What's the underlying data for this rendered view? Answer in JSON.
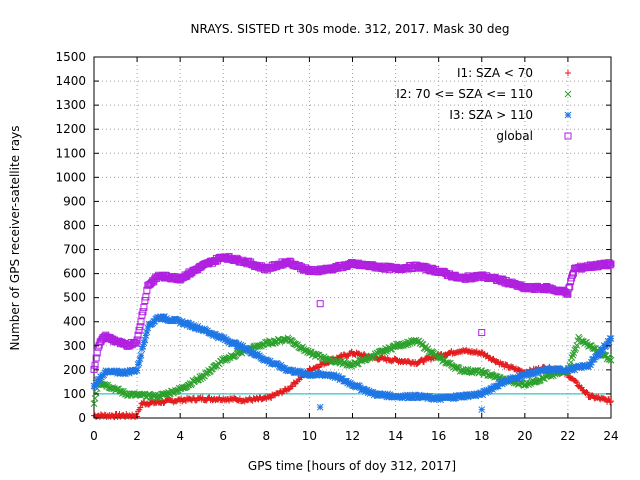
{
  "chart_data": {
    "type": "scatter",
    "title": "NRAYS. SISTED rt 30s mode. 312, 2017. Mask 30 deg",
    "xlabel": "GPS time [hours of doy 312, 2017]",
    "ylabel": "Number of GPS receiver-satellite rays",
    "xlim": [
      0,
      24
    ],
    "ylim": [
      0,
      1500
    ],
    "xticks": [
      0,
      2,
      4,
      6,
      8,
      10,
      12,
      14,
      16,
      18,
      20,
      22,
      24
    ],
    "yticks": [
      0,
      100,
      200,
      300,
      400,
      500,
      600,
      700,
      800,
      900,
      1000,
      1100,
      1200,
      1300,
      1400,
      1500
    ],
    "grid": true,
    "legend_position": "top-right",
    "reference_line": {
      "y": 100,
      "color": "#00c0c0"
    },
    "series": [
      {
        "name": "I1: SZA < 70",
        "marker": "+",
        "color": "#e41a1c",
        "x": [
          0,
          0.5,
          1,
          1.5,
          2,
          2.2,
          3,
          4,
          5,
          6,
          7,
          8,
          9,
          10,
          11,
          12,
          13,
          14,
          15,
          16,
          17,
          18,
          19,
          20,
          21,
          22,
          23,
          24
        ],
        "y": [
          10,
          10,
          10,
          10,
          10,
          60,
          65,
          75,
          80,
          80,
          75,
          80,
          120,
          200,
          240,
          270,
          250,
          240,
          230,
          260,
          280,
          270,
          220,
          190,
          210,
          180,
          90,
          70
        ]
      },
      {
        "name": "I2: 70 <= SZA <= 110",
        "marker": "x",
        "color": "#2ca02c",
        "x": [
          0,
          0.2,
          0.5,
          1,
          1.5,
          2,
          3,
          4,
          5,
          6,
          7,
          8,
          9,
          10,
          11,
          12,
          13,
          14,
          15,
          16,
          17,
          18,
          19,
          20,
          21,
          22,
          22.5,
          23,
          24
        ],
        "y": [
          60,
          150,
          140,
          120,
          100,
          95,
          90,
          120,
          170,
          240,
          280,
          310,
          330,
          270,
          240,
          220,
          260,
          300,
          320,
          250,
          200,
          190,
          160,
          140,
          170,
          200,
          330,
          300,
          240
        ]
      },
      {
        "name": "I3: SZA > 110",
        "marker": "*",
        "color": "#1f77e4",
        "x": [
          0,
          0.3,
          0.5,
          1,
          1.5,
          2,
          2.5,
          3,
          4,
          5,
          6,
          7,
          8,
          9,
          10,
          11,
          12,
          13,
          14,
          15,
          16,
          17,
          18,
          19,
          20,
          21,
          22,
          23,
          24
        ],
        "y": [
          130,
          170,
          190,
          190,
          190,
          200,
          380,
          420,
          400,
          370,
          330,
          290,
          240,
          200,
          180,
          180,
          140,
          100,
          90,
          90,
          80,
          90,
          100,
          150,
          180,
          200,
          200,
          220,
          330
        ]
      },
      {
        "name": "global",
        "marker": "square",
        "color": "#b020e0",
        "x": [
          0,
          0.2,
          0.5,
          1,
          1.5,
          2,
          2.5,
          3,
          4,
          5,
          6,
          7,
          8,
          9,
          10,
          11,
          12,
          13,
          14,
          15,
          16,
          17,
          18,
          19,
          20,
          21,
          22,
          22.3,
          23,
          24
        ],
        "y": [
          200,
          300,
          340,
          320,
          300,
          320,
          550,
          590,
          580,
          630,
          670,
          650,
          620,
          650,
          610,
          620,
          640,
          630,
          620,
          630,
          610,
          580,
          590,
          570,
          540,
          540,
          520,
          620,
          630,
          640
        ]
      }
    ],
    "outliers": [
      {
        "series": "global",
        "x": 10.5,
        "y": 475
      },
      {
        "series": "global",
        "x": 18,
        "y": 355
      },
      {
        "series": "I3: SZA > 110",
        "x": 10.5,
        "y": 45
      },
      {
        "series": "I3: SZA > 110",
        "x": 18,
        "y": 35
      }
    ]
  }
}
